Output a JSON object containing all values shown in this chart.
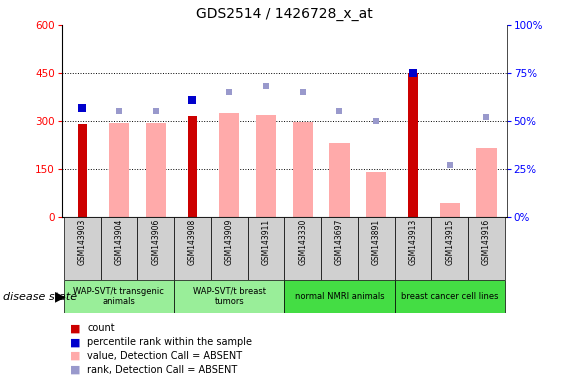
{
  "title": "GDS2514 / 1426728_x_at",
  "samples": [
    "GSM143903",
    "GSM143904",
    "GSM143906",
    "GSM143908",
    "GSM143909",
    "GSM143911",
    "GSM143330",
    "GSM143697",
    "GSM143891",
    "GSM143913",
    "GSM143915",
    "GSM143916"
  ],
  "count_values": [
    290,
    0,
    0,
    315,
    0,
    0,
    0,
    0,
    0,
    450,
    0,
    0
  ],
  "value_absent": [
    0,
    295,
    295,
    0,
    325,
    318,
    298,
    230,
    140,
    0,
    45,
    215
  ],
  "percentile_rank_left": [
    57,
    0,
    0,
    61,
    0,
    0,
    0,
    0,
    0,
    75,
    0,
    0
  ],
  "rank_absent_left": [
    57,
    55,
    55,
    61,
    65,
    68,
    65,
    55,
    50,
    0,
    27,
    52
  ],
  "ylim_left": [
    0,
    600
  ],
  "ylim_right": [
    0,
    100
  ],
  "yticks_left": [
    0,
    150,
    300,
    450,
    600
  ],
  "yticks_right": [
    0,
    25,
    50,
    75,
    100
  ],
  "count_color": "#cc0000",
  "value_absent_color": "#ffaaaa",
  "percentile_color": "#0000cc",
  "rank_absent_color": "#9999cc",
  "group_bounds": [
    [
      0,
      2,
      "WAP-SVT/t transgenic\nanimals",
      "#99ee99"
    ],
    [
      3,
      5,
      "WAP-SVT/t breast\ntumors",
      "#99ee99"
    ],
    [
      6,
      8,
      "normal NMRI animals",
      "#44dd44"
    ],
    [
      9,
      11,
      "breast cancer cell lines",
      "#44dd44"
    ]
  ]
}
